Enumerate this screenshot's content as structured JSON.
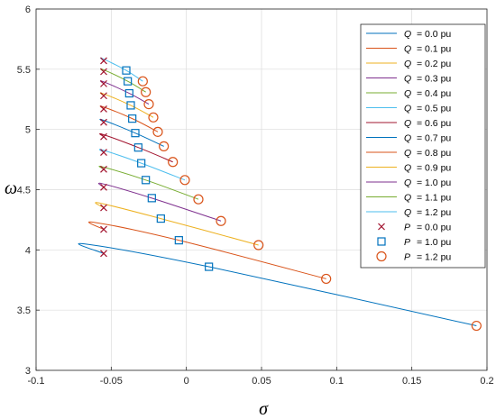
{
  "chart_data": {
    "type": "line",
    "xlabel": "σ",
    "ylabel": "ω",
    "xlim": [
      -0.1,
      0.2
    ],
    "ylim": [
      3,
      6
    ],
    "xticks": [
      "-0.1",
      "-0.05",
      "0",
      "0.05",
      "0.1",
      "0.15",
      "0.2"
    ],
    "yticks": [
      "3",
      "3.5",
      "4",
      "4.5",
      "5",
      "5.5",
      "6"
    ],
    "grid": true,
    "legend_position": "top-right",
    "series": [
      {
        "name": "Q",
        "legend_value": "= 0.0 pu",
        "color": "#0072BD",
        "points": [
          [
            -0.055,
            3.97
          ],
          [
            -0.068,
            4.05
          ],
          [
            0.015,
            3.86
          ],
          [
            0.193,
            3.37
          ]
        ]
      },
      {
        "name": "Q",
        "legend_value": "= 0.1 pu",
        "color": "#D95319",
        "points": [
          [
            -0.055,
            4.17
          ],
          [
            -0.062,
            4.23
          ],
          [
            -0.005,
            4.08
          ],
          [
            0.093,
            3.76
          ]
        ]
      },
      {
        "name": "Q",
        "legend_value": "= 0.2 pu",
        "color": "#EDB120",
        "points": [
          [
            -0.055,
            4.35
          ],
          [
            -0.058,
            4.39
          ],
          [
            -0.017,
            4.26
          ],
          [
            0.048,
            4.04
          ]
        ]
      },
      {
        "name": "Q",
        "legend_value": "= 0.3 pu",
        "color": "#7E2F8E",
        "points": [
          [
            -0.055,
            4.52
          ],
          [
            -0.056,
            4.55
          ],
          [
            -0.023,
            4.43
          ],
          [
            0.023,
            4.24
          ]
        ]
      },
      {
        "name": "Q",
        "legend_value": "= 0.4 pu",
        "color": "#77AC30",
        "points": [
          [
            -0.055,
            4.67
          ],
          [
            -0.056,
            4.69
          ],
          [
            -0.027,
            4.58
          ],
          [
            0.008,
            4.42
          ]
        ]
      },
      {
        "name": "Q",
        "legend_value": "= 0.5 pu",
        "color": "#4DBEEE",
        "points": [
          [
            -0.055,
            4.81
          ],
          [
            -0.056,
            4.83
          ],
          [
            -0.03,
            4.72
          ],
          [
            -0.001,
            4.58
          ]
        ]
      },
      {
        "name": "Q",
        "legend_value": "= 0.6 pu",
        "color": "#A2142F",
        "points": [
          [
            -0.055,
            4.94
          ],
          [
            -0.056,
            4.96
          ],
          [
            -0.032,
            4.85
          ],
          [
            -0.009,
            4.73
          ]
        ]
      },
      {
        "name": "Q",
        "legend_value": "= 0.7 pu",
        "color": "#0072BD",
        "points": [
          [
            -0.055,
            5.06
          ],
          [
            -0.056,
            5.08
          ],
          [
            -0.034,
            4.97
          ],
          [
            -0.015,
            4.86
          ]
        ]
      },
      {
        "name": "Q",
        "legend_value": "= 0.8 pu",
        "color": "#D95319",
        "points": [
          [
            -0.055,
            5.17
          ],
          [
            -0.056,
            5.19
          ],
          [
            -0.036,
            5.09
          ],
          [
            -0.019,
            4.98
          ]
        ]
      },
      {
        "name": "Q",
        "legend_value": "= 0.9 pu",
        "color": "#EDB120",
        "points": [
          [
            -0.055,
            5.28
          ],
          [
            -0.056,
            5.3
          ],
          [
            -0.037,
            5.2
          ],
          [
            -0.022,
            5.1
          ]
        ]
      },
      {
        "name": "Q",
        "legend_value": "= 1.0 pu",
        "color": "#7E2F8E",
        "points": [
          [
            -0.055,
            5.38
          ],
          [
            -0.056,
            5.4
          ],
          [
            -0.038,
            5.3
          ],
          [
            -0.025,
            5.21
          ]
        ]
      },
      {
        "name": "Q",
        "legend_value": "= 1.1 pu",
        "color": "#77AC30",
        "points": [
          [
            -0.055,
            5.48
          ],
          [
            -0.056,
            5.5
          ],
          [
            -0.039,
            5.4
          ],
          [
            -0.027,
            5.31
          ]
        ]
      },
      {
        "name": "Q",
        "legend_value": "= 1.2 pu",
        "color": "#4DBEEE",
        "points": [
          [
            -0.055,
            5.57
          ],
          [
            -0.056,
            5.59
          ],
          [
            -0.04,
            5.49
          ],
          [
            -0.029,
            5.4
          ]
        ]
      }
    ],
    "markers": [
      {
        "name": "P",
        "legend_value": "= 0.0 pu",
        "symbol": "x",
        "color": "#A2142F",
        "x": [
          -0.055,
          -0.055,
          -0.055,
          -0.055,
          -0.055,
          -0.055,
          -0.055,
          -0.055,
          -0.055,
          -0.055,
          -0.055,
          -0.055,
          -0.055
        ],
        "y": [
          3.97,
          4.17,
          4.35,
          4.52,
          4.67,
          4.81,
          4.94,
          5.06,
          5.17,
          5.28,
          5.38,
          5.48,
          5.57
        ]
      },
      {
        "name": "P",
        "legend_value": "= 1.0 pu",
        "symbol": "square",
        "color": "#0072BD",
        "x": [
          0.015,
          -0.005,
          -0.017,
          -0.023,
          -0.027,
          -0.03,
          -0.032,
          -0.034,
          -0.036,
          -0.037,
          -0.038,
          -0.039,
          -0.04
        ],
        "y": [
          3.86,
          4.08,
          4.26,
          4.43,
          4.58,
          4.72,
          4.85,
          4.97,
          5.09,
          5.2,
          5.3,
          5.4,
          5.49
        ]
      },
      {
        "name": "P",
        "legend_value": "= 1.2 pu",
        "symbol": "circle",
        "color": "#D95319",
        "x": [
          0.193,
          0.093,
          0.048,
          0.023,
          0.008,
          -0.001,
          -0.009,
          -0.015,
          -0.019,
          -0.022,
          -0.025,
          -0.027,
          -0.029
        ],
        "y": [
          3.37,
          3.76,
          4.04,
          4.24,
          4.42,
          4.58,
          4.73,
          4.86,
          4.98,
          5.1,
          5.21,
          5.31,
          5.4
        ]
      }
    ]
  }
}
